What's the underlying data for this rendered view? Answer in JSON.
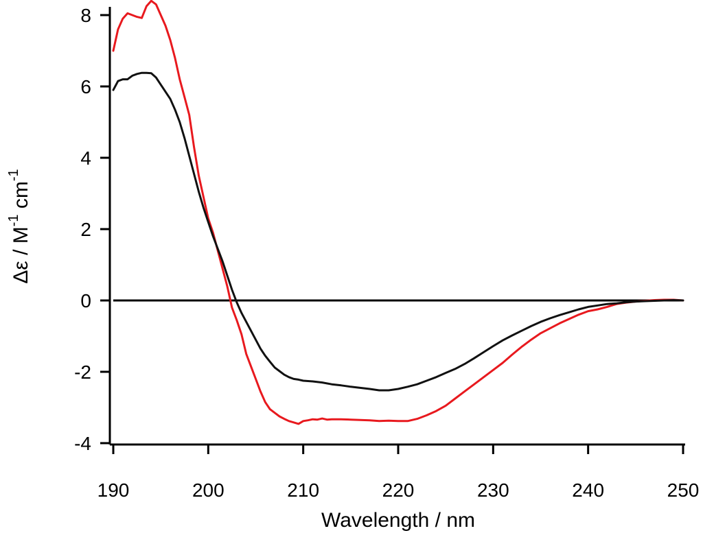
{
  "chart_data": {
    "type": "line",
    "title": "",
    "xlabel": "Wavelength / nm",
    "ylabel": {
      "prefix": "Δε / M",
      "sup1": "-1",
      "mid": " cm",
      "sup2": "-1"
    },
    "xlim": [
      190,
      250
    ],
    "ylim": [
      -4,
      8.3
    ],
    "xticks": [
      190,
      200,
      210,
      220,
      230,
      240,
      250
    ],
    "yticks": [
      -4,
      -2,
      0,
      2,
      4,
      6,
      8
    ],
    "grid": false,
    "zero_line": true,
    "series": [
      {
        "name": "red",
        "color": "#e8191e",
        "x": [
          190,
          190.5,
          191,
          191.5,
          192,
          192.5,
          193,
          193.5,
          194,
          194.5,
          195,
          195.5,
          196,
          196.5,
          197,
          197.5,
          198,
          198.5,
          199,
          199.5,
          200,
          200.5,
          201,
          201.5,
          202,
          202.5,
          203,
          203.5,
          204,
          204.5,
          205,
          205.5,
          206,
          206.5,
          207,
          207.5,
          208,
          208.5,
          209,
          209.5,
          210,
          210.5,
          211,
          211.5,
          212,
          212.5,
          213,
          214,
          215,
          216,
          217,
          218,
          219,
          220,
          221,
          222,
          223,
          224,
          225,
          226,
          227,
          228,
          229,
          230,
          231,
          232,
          233,
          234,
          235,
          236,
          237,
          238,
          239,
          240,
          241,
          242,
          243,
          244,
          245,
          246,
          247,
          248,
          249,
          250
        ],
        "y": [
          7.0,
          7.6,
          7.9,
          8.05,
          8.0,
          7.95,
          7.92,
          8.25,
          8.4,
          8.3,
          8.0,
          7.7,
          7.3,
          6.8,
          6.2,
          5.7,
          5.2,
          4.3,
          3.5,
          2.9,
          2.3,
          1.9,
          1.4,
          0.9,
          0.4,
          -0.2,
          -0.55,
          -0.95,
          -1.5,
          -1.85,
          -2.2,
          -2.55,
          -2.85,
          -3.05,
          -3.15,
          -3.25,
          -3.32,
          -3.38,
          -3.42,
          -3.46,
          -3.38,
          -3.36,
          -3.33,
          -3.34,
          -3.31,
          -3.34,
          -3.33,
          -3.33,
          -3.34,
          -3.35,
          -3.36,
          -3.38,
          -3.37,
          -3.38,
          -3.38,
          -3.32,
          -3.22,
          -3.1,
          -2.95,
          -2.75,
          -2.55,
          -2.35,
          -2.15,
          -1.95,
          -1.75,
          -1.52,
          -1.3,
          -1.1,
          -0.92,
          -0.78,
          -0.64,
          -0.52,
          -0.4,
          -0.3,
          -0.25,
          -0.18,
          -0.1,
          -0.06,
          -0.03,
          -0.01,
          0.01,
          0.02,
          0.02,
          0.0
        ]
      },
      {
        "name": "black",
        "color": "#111111",
        "x": [
          190,
          190.5,
          191,
          191.5,
          192,
          192.5,
          193,
          193.5,
          194,
          194.5,
          195,
          195.5,
          196,
          196.5,
          197,
          197.5,
          198,
          198.5,
          199,
          199.5,
          200,
          200.5,
          201,
          201.5,
          202,
          202.5,
          203,
          203.5,
          204,
          204.5,
          205,
          205.5,
          206,
          206.5,
          207,
          207.5,
          208,
          208.5,
          209,
          209.5,
          210,
          211,
          212,
          213,
          214,
          215,
          216,
          217,
          218,
          219,
          220,
          221,
          222,
          223,
          224,
          225,
          226,
          227,
          228,
          229,
          230,
          231,
          232,
          233,
          234,
          235,
          236,
          237,
          238,
          239,
          240,
          241,
          242,
          243,
          244,
          245,
          246,
          247,
          248,
          249,
          250
        ],
        "y": [
          5.9,
          6.15,
          6.2,
          6.2,
          6.3,
          6.35,
          6.38,
          6.38,
          6.37,
          6.25,
          6.05,
          5.85,
          5.65,
          5.35,
          5.0,
          4.55,
          4.05,
          3.55,
          3.05,
          2.6,
          2.2,
          1.8,
          1.45,
          1.1,
          0.7,
          0.3,
          -0.05,
          -0.35,
          -0.6,
          -0.85,
          -1.1,
          -1.35,
          -1.55,
          -1.72,
          -1.88,
          -1.98,
          -2.08,
          -2.15,
          -2.2,
          -2.22,
          -2.25,
          -2.27,
          -2.3,
          -2.35,
          -2.38,
          -2.42,
          -2.45,
          -2.48,
          -2.52,
          -2.52,
          -2.48,
          -2.42,
          -2.35,
          -2.25,
          -2.15,
          -2.03,
          -1.92,
          -1.78,
          -1.62,
          -1.45,
          -1.28,
          -1.12,
          -0.98,
          -0.85,
          -0.72,
          -0.6,
          -0.5,
          -0.41,
          -0.33,
          -0.25,
          -0.18,
          -0.14,
          -0.1,
          -0.08,
          -0.05,
          -0.03,
          -0.02,
          -0.01,
          0.0,
          0.01,
          0.0
        ]
      }
    ]
  }
}
